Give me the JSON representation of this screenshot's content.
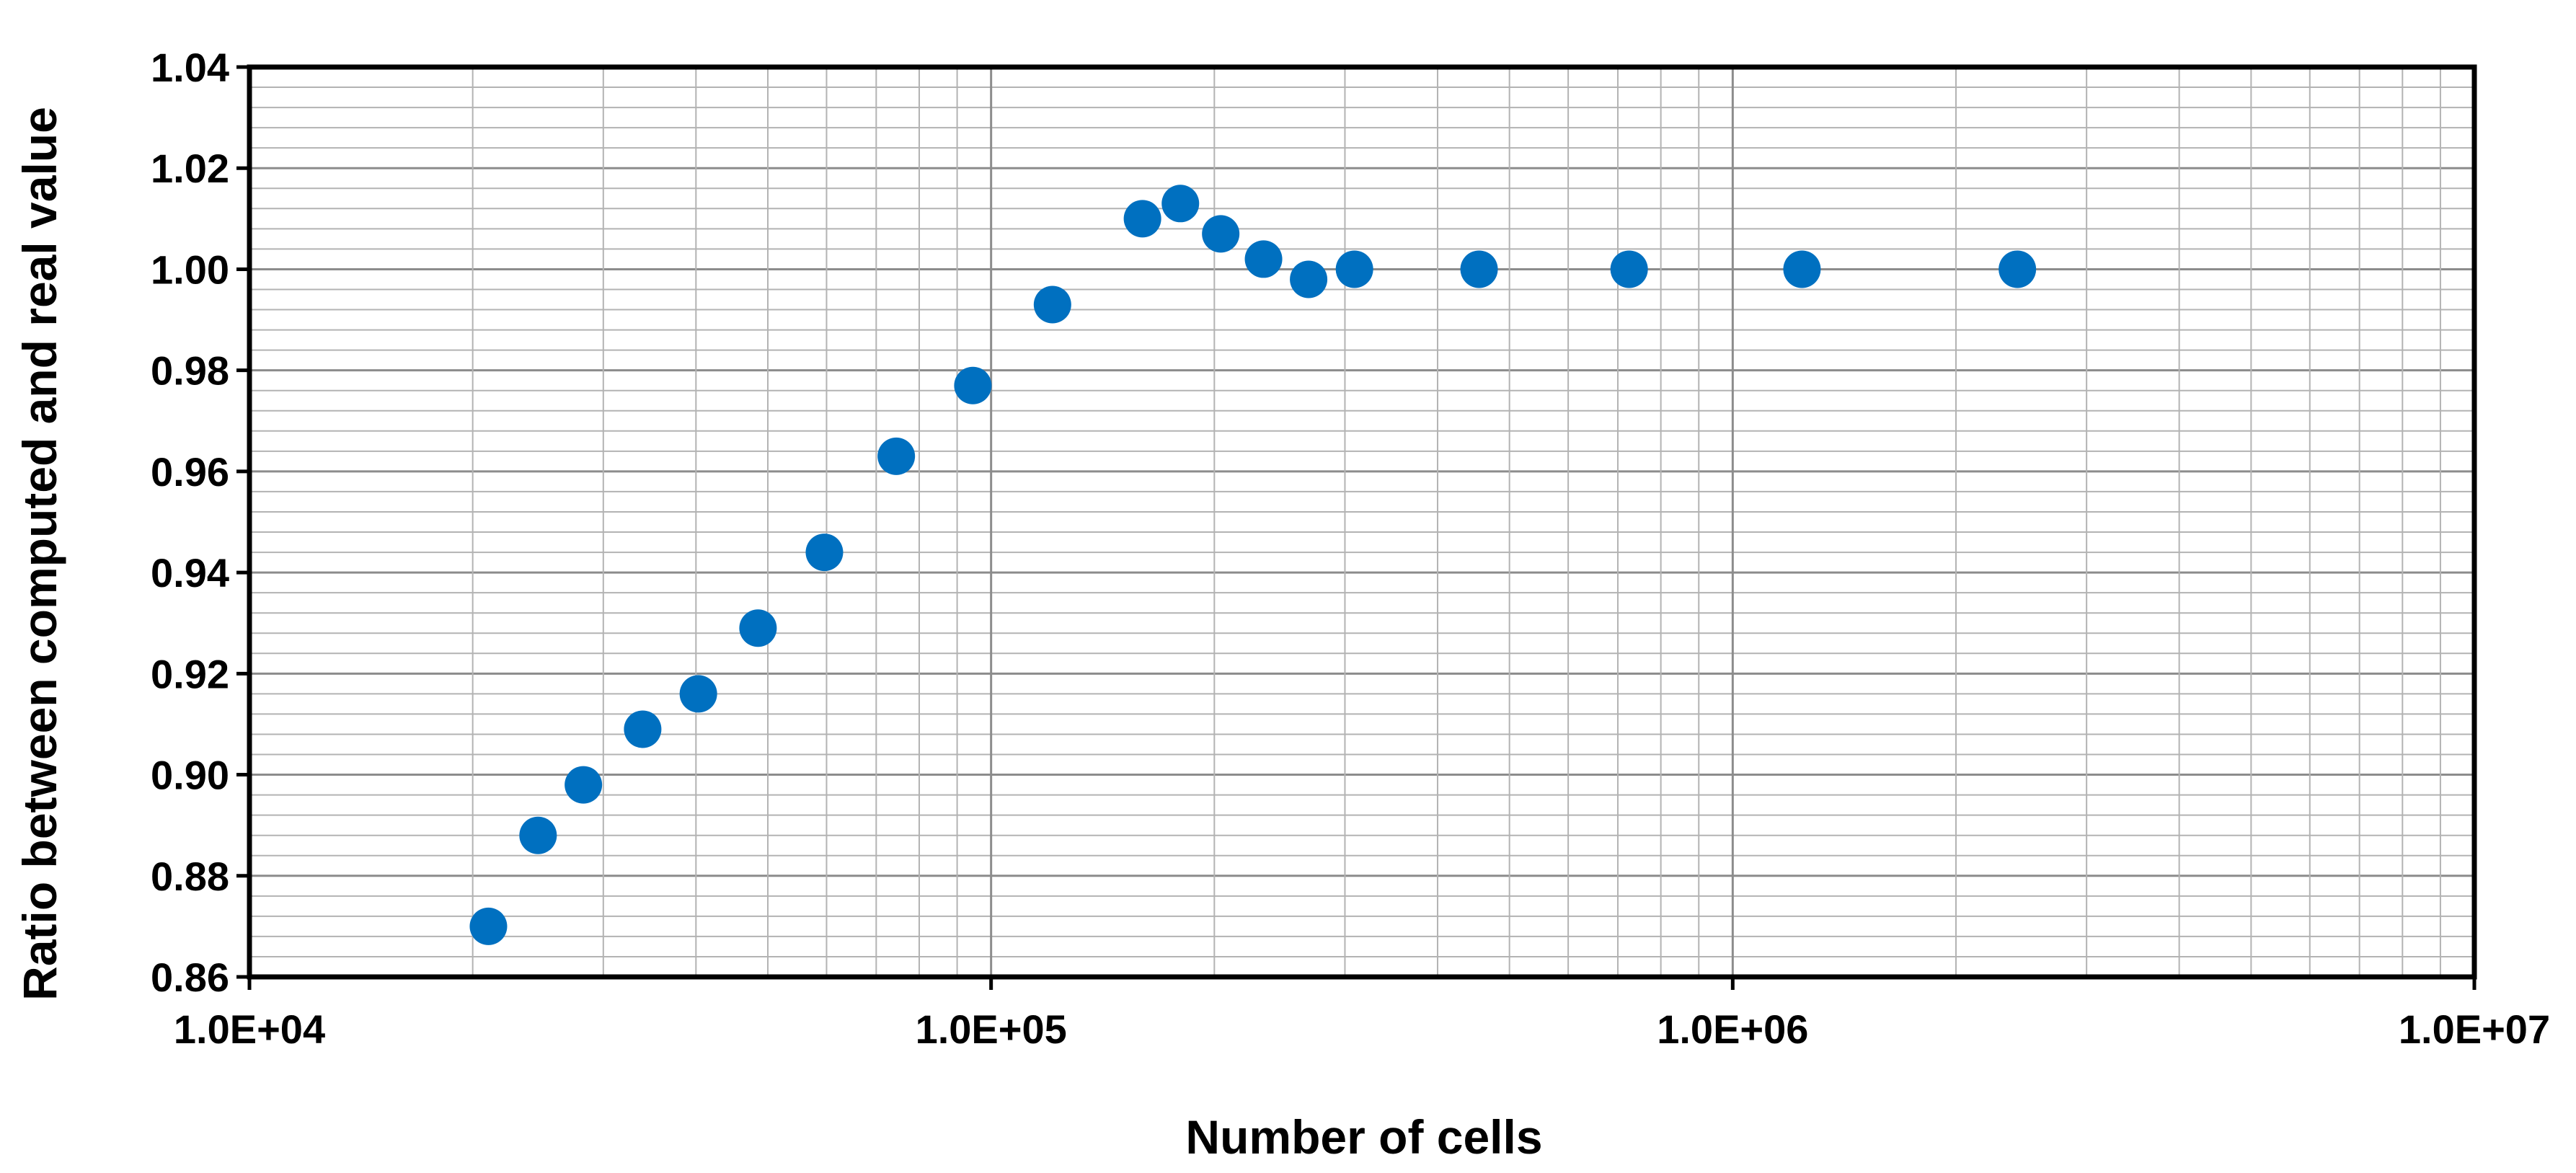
{
  "chart_data": {
    "type": "scatter",
    "title": "",
    "xlabel": "Number of cells",
    "ylabel": "Ratio between computed and real value",
    "x_scale": "log",
    "xlim": [
      10000,
      10000000
    ],
    "ylim": [
      0.86,
      1.04
    ],
    "x_ticks": [
      10000,
      100000,
      1000000,
      10000000
    ],
    "x_tick_labels": [
      "1.0E+04",
      "1.0E+05",
      "1.0E+06",
      "1.0E+07"
    ],
    "y_ticks": [
      0.86,
      0.88,
      0.9,
      0.92,
      0.94,
      0.96,
      0.98,
      1.0,
      1.02,
      1.04
    ],
    "y_tick_labels": [
      "0.86",
      "0.88",
      "0.90",
      "0.92",
      "0.94",
      "0.96",
      "0.98",
      "1.00",
      "1.02",
      "1.04"
    ],
    "grid": true,
    "legend": "none",
    "marker_color": "#0070C0",
    "series": [
      {
        "x": [
          21000,
          24500,
          28200,
          33900,
          40300,
          48500,
          59600,
          74500,
          94500,
          121000,
          160000,
          180000,
          204000,
          233000,
          268000,
          309000,
          455000,
          725000,
          1240000,
          2420000
        ],
        "y": [
          0.87,
          0.888,
          0.898,
          0.909,
          0.916,
          0.929,
          0.944,
          0.963,
          0.977,
          0.993,
          1.01,
          1.013,
          1.007,
          1.002,
          0.998,
          1.0,
          1.0,
          1.0,
          1.0,
          1.0
        ]
      }
    ]
  }
}
